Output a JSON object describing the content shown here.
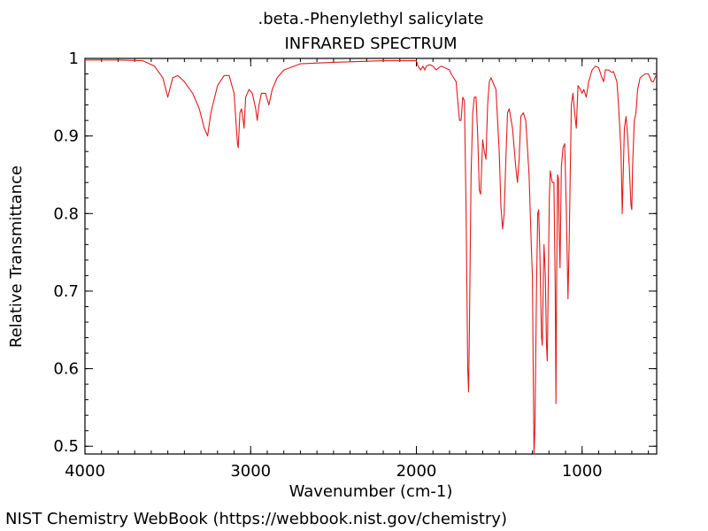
{
  "chart_data": {
    "type": "line",
    "title": ".beta.-Phenylethyl salicylate",
    "subtitle": "INFRARED SPECTRUM",
    "xlabel": "Wavenumber (cm-1)",
    "ylabel": "Relative Transmittance",
    "xlim": [
      4000,
      550
    ],
    "ylim": [
      0.49,
      1.0
    ],
    "x_ticks": [
      4000,
      3000,
      2000,
      1000
    ],
    "x_tick_labels": [
      "4000",
      "3000",
      "2000",
      "1000"
    ],
    "y_ticks": [
      0.5,
      0.6,
      0.7,
      0.8,
      0.9,
      1.0
    ],
    "y_tick_labels": [
      "0.5",
      "0.6",
      "0.7",
      "0.8",
      "0.9",
      "1"
    ],
    "grid": false,
    "legend": "none",
    "series": [
      {
        "color": "#e31a1c",
        "points": [
          [
            4000,
            0.998
          ],
          [
            3800,
            0.998
          ],
          [
            3650,
            0.997
          ],
          [
            3580,
            0.99
          ],
          [
            3530,
            0.975
          ],
          [
            3500,
            0.95
          ],
          [
            3470,
            0.975
          ],
          [
            3440,
            0.978
          ],
          [
            3400,
            0.97
          ],
          [
            3350,
            0.955
          ],
          [
            3310,
            0.935
          ],
          [
            3280,
            0.91
          ],
          [
            3260,
            0.9
          ],
          [
            3240,
            0.93
          ],
          [
            3200,
            0.965
          ],
          [
            3160,
            0.978
          ],
          [
            3130,
            0.978
          ],
          [
            3100,
            0.955
          ],
          [
            3080,
            0.89
          ],
          [
            3075,
            0.885
          ],
          [
            3065,
            0.93
          ],
          [
            3055,
            0.935
          ],
          [
            3045,
            0.92
          ],
          [
            3040,
            0.91
          ],
          [
            3030,
            0.95
          ],
          [
            3010,
            0.96
          ],
          [
            2990,
            0.955
          ],
          [
            2970,
            0.935
          ],
          [
            2960,
            0.92
          ],
          [
            2950,
            0.94
          ],
          [
            2935,
            0.955
          ],
          [
            2910,
            0.955
          ],
          [
            2890,
            0.94
          ],
          [
            2870,
            0.96
          ],
          [
            2840,
            0.975
          ],
          [
            2800,
            0.985
          ],
          [
            2700,
            0.993
          ],
          [
            2500,
            0.995
          ],
          [
            2200,
            0.997
          ],
          [
            2050,
            0.997
          ],
          [
            2000,
            0.997
          ],
          [
            1990,
            0.99
          ],
          [
            1975,
            0.985
          ],
          [
            1960,
            0.99
          ],
          [
            1950,
            0.985
          ],
          [
            1940,
            0.99
          ],
          [
            1920,
            0.992
          ],
          [
            1900,
            0.99
          ],
          [
            1880,
            0.985
          ],
          [
            1865,
            0.988
          ],
          [
            1850,
            0.99
          ],
          [
            1800,
            0.985
          ],
          [
            1790,
            0.98
          ],
          [
            1760,
            0.97
          ],
          [
            1740,
            0.92
          ],
          [
            1730,
            0.92
          ],
          [
            1720,
            0.95
          ],
          [
            1710,
            0.945
          ],
          [
            1700,
            0.8
          ],
          [
            1690,
            0.6
          ],
          [
            1685,
            0.57
          ],
          [
            1680,
            0.65
          ],
          [
            1670,
            0.85
          ],
          [
            1660,
            0.93
          ],
          [
            1650,
            0.95
          ],
          [
            1640,
            0.95
          ],
          [
            1630,
            0.9
          ],
          [
            1620,
            0.83
          ],
          [
            1612,
            0.825
          ],
          [
            1600,
            0.895
          ],
          [
            1590,
            0.88
          ],
          [
            1580,
            0.87
          ],
          [
            1570,
            0.94
          ],
          [
            1560,
            0.97
          ],
          [
            1550,
            0.975
          ],
          [
            1520,
            0.96
          ],
          [
            1500,
            0.88
          ],
          [
            1490,
            0.81
          ],
          [
            1480,
            0.78
          ],
          [
            1470,
            0.8
          ],
          [
            1460,
            0.87
          ],
          [
            1450,
            0.93
          ],
          [
            1440,
            0.935
          ],
          [
            1420,
            0.91
          ],
          [
            1400,
            0.86
          ],
          [
            1390,
            0.84
          ],
          [
            1380,
            0.87
          ],
          [
            1370,
            0.925
          ],
          [
            1355,
            0.93
          ],
          [
            1340,
            0.92
          ],
          [
            1320,
            0.85
          ],
          [
            1305,
            0.75
          ],
          [
            1300,
            0.72
          ],
          [
            1295,
            0.6
          ],
          [
            1290,
            0.49
          ],
          [
            1285,
            0.52
          ],
          [
            1275,
            0.7
          ],
          [
            1268,
            0.8
          ],
          [
            1262,
            0.805
          ],
          [
            1255,
            0.75
          ],
          [
            1245,
            0.64
          ],
          [
            1240,
            0.63
          ],
          [
            1235,
            0.7
          ],
          [
            1230,
            0.76
          ],
          [
            1222,
            0.72
          ],
          [
            1215,
            0.63
          ],
          [
            1210,
            0.61
          ],
          [
            1205,
            0.7
          ],
          [
            1198,
            0.82
          ],
          [
            1192,
            0.855
          ],
          [
            1180,
            0.84
          ],
          [
            1170,
            0.84
          ],
          [
            1162,
            0.7
          ],
          [
            1158,
            0.555
          ],
          [
            1154,
            0.7
          ],
          [
            1148,
            0.85
          ],
          [
            1143,
            0.845
          ],
          [
            1138,
            0.77
          ],
          [
            1133,
            0.73
          ],
          [
            1125,
            0.86
          ],
          [
            1115,
            0.885
          ],
          [
            1105,
            0.89
          ],
          [
            1095,
            0.8
          ],
          [
            1085,
            0.69
          ],
          [
            1078,
            0.76
          ],
          [
            1065,
            0.94
          ],
          [
            1055,
            0.955
          ],
          [
            1045,
            0.93
          ],
          [
            1035,
            0.91
          ],
          [
            1025,
            0.965
          ],
          [
            1010,
            0.96
          ],
          [
            1000,
            0.955
          ],
          [
            990,
            0.96
          ],
          [
            975,
            0.95
          ],
          [
            960,
            0.97
          ],
          [
            940,
            0.985
          ],
          [
            920,
            0.99
          ],
          [
            900,
            0.988
          ],
          [
            880,
            0.975
          ],
          [
            870,
            0.97
          ],
          [
            860,
            0.985
          ],
          [
            840,
            0.985
          ],
          [
            820,
            0.982
          ],
          [
            810,
            0.983
          ],
          [
            790,
            0.97
          ],
          [
            780,
            0.94
          ],
          [
            765,
            0.88
          ],
          [
            758,
            0.8
          ],
          [
            752,
            0.85
          ],
          [
            745,
            0.91
          ],
          [
            735,
            0.925
          ],
          [
            725,
            0.9
          ],
          [
            715,
            0.86
          ],
          [
            705,
            0.81
          ],
          [
            700,
            0.805
          ],
          [
            695,
            0.86
          ],
          [
            685,
            0.92
          ],
          [
            675,
            0.93
          ],
          [
            665,
            0.96
          ],
          [
            650,
            0.975
          ],
          [
            620,
            0.98
          ],
          [
            600,
            0.98
          ],
          [
            590,
            0.975
          ],
          [
            580,
            0.97
          ],
          [
            570,
            0.97
          ],
          [
            560,
            0.975
          ],
          [
            550,
            0.98
          ]
        ]
      }
    ]
  },
  "footer": {
    "credit": "NIST Chemistry WebBook (https://webbook.nist.gov/chemistry)"
  }
}
